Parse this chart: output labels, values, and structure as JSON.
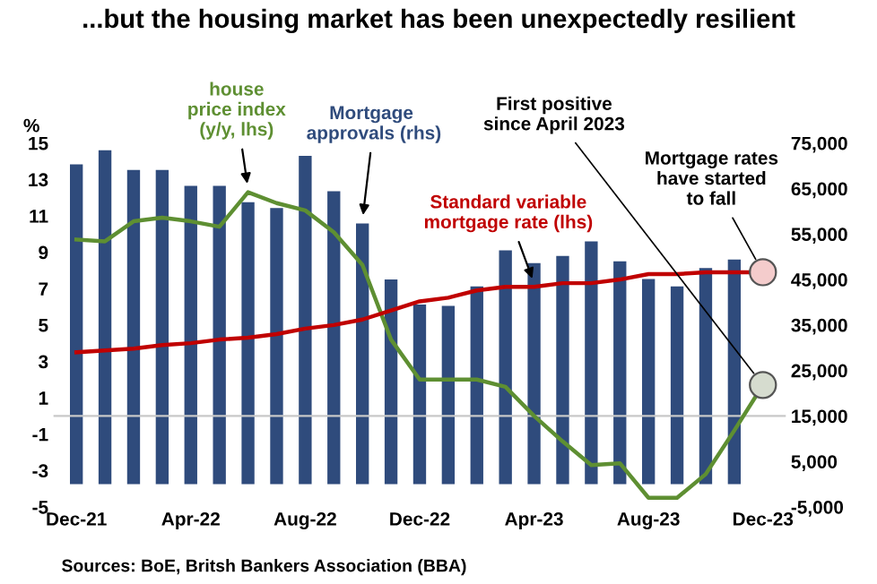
{
  "chart_data": {
    "type": "bar",
    "title": "...but the housing market has been unexpectedly resilient",
    "ylabel": "%",
    "categories": [
      "Dec-21",
      null,
      null,
      null,
      "Apr-22",
      null,
      null,
      null,
      "Aug-22",
      null,
      null,
      null,
      "Dec-22",
      null,
      null,
      null,
      "Apr-23",
      null,
      null,
      null,
      "Aug-23",
      null,
      null,
      null,
      "Dec-23"
    ],
    "series": [
      {
        "name": "Mortgage approvals (rhs)",
        "axis": "y2",
        "color": "#2f4b7c",
        "values": [
          70300,
          73400,
          69100,
          69100,
          65600,
          65600,
          62000,
          60700,
          72200,
          64400,
          57300,
          45000,
          39500,
          39200,
          43500,
          51400,
          48600,
          50200,
          53400,
          49000,
          45100,
          43500,
          47500,
          49400,
          null
        ]
      },
      {
        "name": "house price index (y/y, lhs)",
        "type": "line",
        "color": "#5e8f32",
        "values": [
          9.7,
          9.6,
          10.7,
          10.9,
          10.7,
          10.4,
          12.3,
          11.7,
          11.3,
          10.1,
          8.3,
          4.2,
          2.0,
          2.0,
          2.0,
          1.6,
          0.0,
          -1.4,
          -2.7,
          -2.6,
          -4.5,
          -4.5,
          -3.2,
          -0.8,
          1.7
        ]
      },
      {
        "name": "Standard variable mortgage rate (lhs)",
        "type": "line",
        "color": "#c00000",
        "values": [
          3.5,
          3.6,
          3.7,
          3.9,
          4.0,
          4.2,
          4.3,
          4.5,
          4.8,
          5.0,
          5.3,
          5.8,
          6.3,
          6.5,
          6.9,
          7.1,
          7.1,
          7.3,
          7.3,
          7.5,
          7.8,
          7.8,
          7.9,
          7.9,
          7.9
        ]
      }
    ],
    "ylim": [
      -5,
      15
    ],
    "yticks": [
      -5,
      -3,
      -1,
      1,
      3,
      5,
      7,
      9,
      11,
      13,
      15
    ],
    "y2lim": [
      -5000,
      75000
    ],
    "y2ticks": [
      {
        "value": -5000,
        "label": "-5,000"
      },
      {
        "value": 5000,
        "label": "5,000"
      },
      {
        "value": 15000,
        "label": "15,000"
      },
      {
        "value": 25000,
        "label": "25,000"
      },
      {
        "value": 35000,
        "label": "35,000"
      },
      {
        "value": 45000,
        "label": "45,000"
      },
      {
        "value": 55000,
        "label": "55,000"
      },
      {
        "value": 65000,
        "label": "65,000"
      },
      {
        "value": 75000,
        "label": "75,000"
      }
    ],
    "ref_lines": [
      {
        "axis": "y",
        "value": 0,
        "color": "#c8c8c8"
      }
    ],
    "annotations": [
      {
        "text": "First positive\nsince April 2023",
        "x": "Dec-23",
        "y": 1.7
      },
      {
        "text": "Mortgage rates\nhave started\nto fall",
        "x": "Dec-23",
        "y": 7.9
      },
      "Sources: BoE, Britsh Bankers Association (BBA)"
    ],
    "grid": false,
    "marker": "none",
    "line_style": "solid"
  }
}
